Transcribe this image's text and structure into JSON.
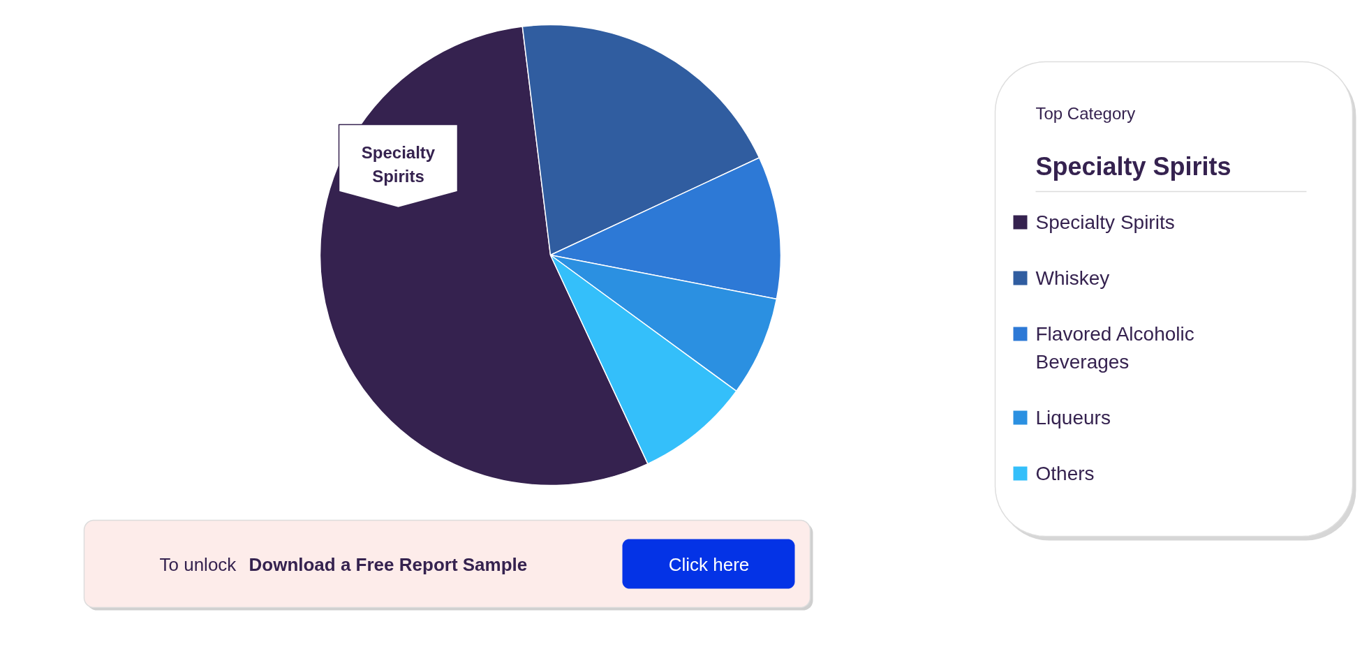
{
  "chart_data": {
    "type": "pie",
    "categories": [
      "Specialty Spirits",
      "Whiskey",
      "Flavored Alcoholic Beverages",
      "Liqueurs",
      "Others"
    ],
    "values": [
      55,
      20,
      10,
      7,
      8
    ],
    "colors": [
      "#35224f",
      "#305da0",
      "#2d79d6",
      "#2b90e1",
      "#34bffa"
    ],
    "legend": "right",
    "legend_title": "Top Category",
    "annotations": [
      "Specialty Spirits",
      "Specialty Spirits",
      "To unlock",
      "Download a Free Report Sample",
      "Click here"
    ]
  }
}
